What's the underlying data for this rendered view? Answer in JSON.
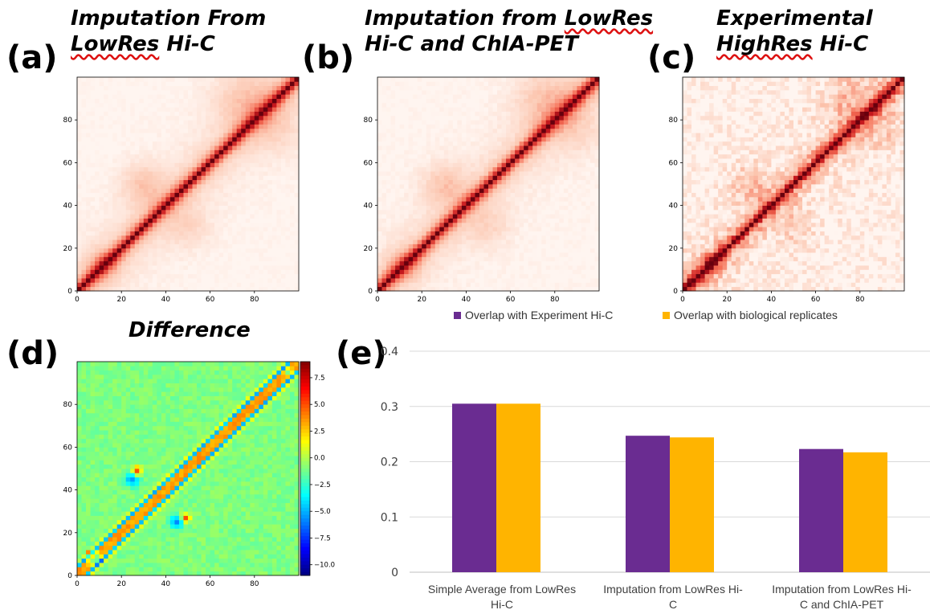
{
  "panels": {
    "a": {
      "letter": "(a)",
      "title_line1": "Imputation From",
      "title_line2_squiggle": "LowRes",
      "title_line2_rest": " Hi-C"
    },
    "b": {
      "letter": "(b)",
      "title_line1_plain": "Imputation from ",
      "title_line1_squiggle": "LowRes",
      "title_line2": "Hi-C and ChIA-PET"
    },
    "c": {
      "letter": "(c)",
      "title_line1": "Experimental",
      "title_line2_squiggle": "HighRes",
      "title_line2_rest": " Hi-C"
    },
    "d": {
      "letter": "(d)",
      "title": "Difference"
    },
    "e": {
      "letter": "(e)"
    }
  },
  "heatmap_ticks": [
    "0",
    "20",
    "40",
    "60",
    "80"
  ],
  "colorbar_ticks": [
    "7.5",
    "5.0",
    "2.5",
    "0.0",
    "−2.5",
    "−5.0",
    "−7.5",
    "−10.0"
  ],
  "colors": {
    "purple": "#6a2c91",
    "orange": "#ffb400",
    "gridline": "#d9d9d9"
  },
  "chart_data": [
    {
      "type": "heatmap",
      "panel": "a",
      "xlim": [
        0,
        100
      ],
      "ylim": [
        0,
        100
      ],
      "x_ticks": [
        0,
        20,
        40,
        60,
        80
      ],
      "y_ticks": [
        0,
        20,
        40,
        60,
        80
      ],
      "colormap": "reds"
    },
    {
      "type": "heatmap",
      "panel": "b",
      "xlim": [
        0,
        100
      ],
      "ylim": [
        0,
        100
      ],
      "x_ticks": [
        0,
        20,
        40,
        60,
        80
      ],
      "y_ticks": [
        0,
        20,
        40,
        60,
        80
      ],
      "colormap": "reds"
    },
    {
      "type": "heatmap",
      "panel": "c",
      "xlim": [
        0,
        100
      ],
      "ylim": [
        0,
        100
      ],
      "x_ticks": [
        0,
        20,
        40,
        60,
        80
      ],
      "y_ticks": [
        0,
        20,
        40,
        60,
        80
      ],
      "colormap": "reds"
    },
    {
      "type": "heatmap",
      "panel": "d",
      "title": "Difference",
      "xlim": [
        0,
        100
      ],
      "ylim": [
        0,
        100
      ],
      "x_ticks": [
        0,
        20,
        40,
        60,
        80
      ],
      "y_ticks": [
        0,
        20,
        40,
        60,
        80
      ],
      "colormap": "jet",
      "colorbar_range": [
        -11,
        9
      ],
      "colorbar_ticks": [
        7.5,
        5.0,
        2.5,
        0.0,
        -2.5,
        -5.0,
        -7.5,
        -10.0
      ]
    },
    {
      "type": "bar",
      "panel": "e",
      "categories": [
        [
          "Simple Average from LowRes",
          "Hi-C"
        ],
        [
          "Imputation from LowRes Hi-",
          "C"
        ],
        [
          "Imputation from LowRes Hi-",
          "C and ChIA-PET"
        ]
      ],
      "series": [
        {
          "name": "Overlap with Experiment Hi-C",
          "color": "#6a2c91",
          "values": [
            0.305,
            0.247,
            0.223
          ]
        },
        {
          "name": "Overlap with biological replicates",
          "color": "#ffb400",
          "values": [
            0.305,
            0.244,
            0.217
          ]
        }
      ],
      "ylim": [
        0,
        0.4
      ],
      "y_ticks": [
        "0",
        "0.1",
        "0.2",
        "0.3",
        "0.4"
      ],
      "grid": true,
      "legend": "top"
    }
  ]
}
